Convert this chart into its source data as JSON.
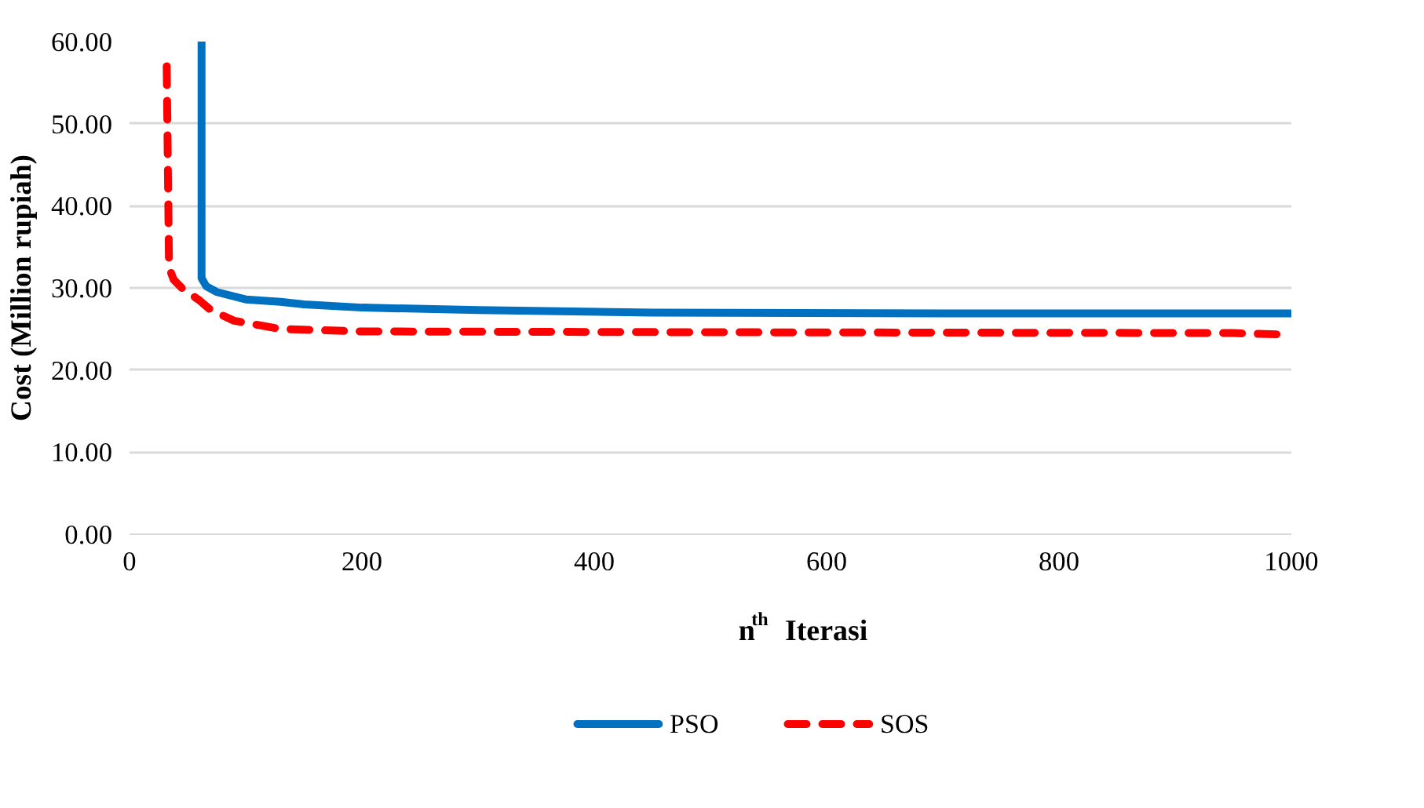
{
  "chart_data": {
    "type": "line",
    "xlabel": "n$^{th}$ Iterasi",
    "ylabel": "Cost (Million rupiah)",
    "xlim": [
      0,
      1000
    ],
    "xticks": [
      0,
      200,
      400,
      600,
      800,
      1000
    ],
    "ylim": [
      0,
      60
    ],
    "yticks": [
      {
        "value": 0,
        "label": "0.00"
      },
      {
        "value": 10,
        "label": "10.00"
      },
      {
        "value": 20,
        "label": "20.00"
      },
      {
        "value": 30,
        "label": "30.00"
      },
      {
        "value": 40,
        "label": "40.00"
      },
      {
        "value": 50,
        "label": "50.00"
      },
      {
        "value": 60,
        "label": "60.00"
      }
    ],
    "grid": "y",
    "legend": "bottom",
    "series": [
      {
        "name": "PSO",
        "color": "#0070c0",
        "line_style": "solid",
        "x": [
          62,
          62,
          66,
          75,
          100,
          130,
          150,
          200,
          300,
          450,
          700,
          1000
        ],
        "values": [
          60,
          31.2,
          30.2,
          29.5,
          28.6,
          28.3,
          28.0,
          27.6,
          27.3,
          27.0,
          26.9,
          26.9
        ]
      },
      {
        "name": "SOS",
        "color": "#ff0000",
        "line_style": "dashed",
        "x": [
          32,
          34,
          38,
          45,
          60,
          70,
          90,
          130,
          200,
          500,
          950,
          1000
        ],
        "values": [
          57,
          32.5,
          31.0,
          30.0,
          28.5,
          27.3,
          26.0,
          25.0,
          24.7,
          24.6,
          24.5,
          24.3
        ]
      }
    ]
  }
}
